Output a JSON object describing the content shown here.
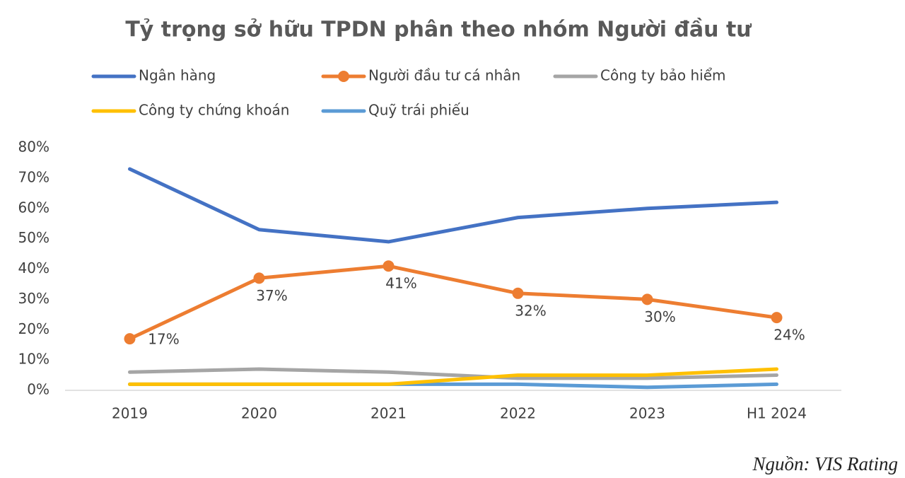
{
  "chart_data": {
    "type": "line",
    "title": "Tỷ trọng sở hữu TPDN phân theo nhóm Người đầu tư",
    "source": "Nguồn: VIS Rating",
    "categories": [
      "2019",
      "2020",
      "2021",
      "2022",
      "2023",
      "H1 2024"
    ],
    "series": [
      {
        "name": "Ngân hàng",
        "color": "#4472c4",
        "values": [
          73,
          53,
          49,
          57,
          60,
          62
        ]
      },
      {
        "name": "Người đầu tư cá nhân",
        "color": "#ed7d31",
        "marker": true,
        "values": [
          17,
          37,
          41,
          32,
          30,
          24
        ],
        "value_labels": [
          "17%",
          "37%",
          "41%",
          "32%",
          "30%",
          "24%"
        ]
      },
      {
        "name": "Công ty bảo hiểm",
        "color": "#a5a5a5",
        "values": [
          6,
          7,
          6,
          4,
          4,
          5
        ]
      },
      {
        "name": "Công ty chứng khoán",
        "color": "#ffc000",
        "values": [
          2,
          2,
          2,
          5,
          5,
          7
        ]
      },
      {
        "name": "Quỹ trái phiếu",
        "color": "#5b9bd5",
        "values": [
          2,
          2,
          2,
          2,
          1,
          2
        ]
      }
    ],
    "ylim": [
      0,
      80
    ],
    "yticks": [
      {
        "value": 0,
        "label": "0%"
      },
      {
        "value": 10,
        "label": "10%"
      },
      {
        "value": 20,
        "label": "20%"
      },
      {
        "value": 30,
        "label": "30%"
      },
      {
        "value": 40,
        "label": "40%"
      },
      {
        "value": 50,
        "label": "50%"
      },
      {
        "value": 60,
        "label": "60%"
      },
      {
        "value": 70,
        "label": "70%"
      },
      {
        "value": 80,
        "label": "80%"
      }
    ],
    "grid": false
  }
}
